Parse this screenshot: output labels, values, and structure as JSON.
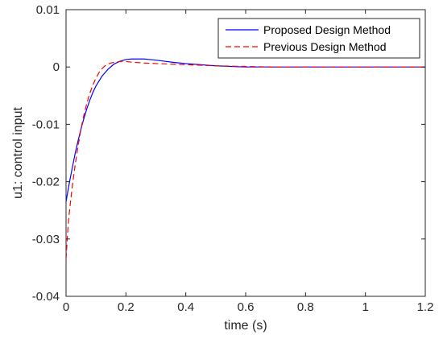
{
  "chart_data": {
    "type": "line",
    "title": "",
    "xlabel": "time (s)",
    "ylabel": "u1: control input",
    "xlim": [
      0,
      1.2
    ],
    "ylim": [
      -0.04,
      0.01
    ],
    "xticks": [
      0,
      0.2,
      0.4,
      0.6,
      0.8,
      1,
      1.2
    ],
    "xtick_labels": [
      "0",
      "0.2",
      "0.4",
      "0.6",
      "0.8",
      "1",
      "1.2"
    ],
    "yticks": [
      -0.04,
      -0.03,
      -0.02,
      -0.01,
      0,
      0.01
    ],
    "ytick_labels": [
      "-0.04",
      "-0.03",
      "-0.02",
      "-0.01",
      "0",
      "0.01"
    ],
    "grid": false,
    "legend_position": "top-right",
    "series": [
      {
        "name": "Proposed Design Method",
        "color": "#0000ff",
        "style": "solid",
        "x": [
          0,
          0.01,
          0.02,
          0.03,
          0.04,
          0.05,
          0.06,
          0.07,
          0.08,
          0.09,
          0.1,
          0.12,
          0.14,
          0.16,
          0.18,
          0.2,
          0.22,
          0.24,
          0.26,
          0.28,
          0.3,
          0.33,
          0.36,
          0.4,
          0.45,
          0.5,
          0.55,
          0.6,
          0.7,
          0.8,
          0.9,
          1.0,
          1.1,
          1.2
        ],
        "y": [
          -0.0235,
          -0.0205,
          -0.0178,
          -0.0152,
          -0.0129,
          -0.0108,
          -0.0089,
          -0.0072,
          -0.0057,
          -0.0044,
          -0.0033,
          -0.0016,
          -0.0004,
          0.0005,
          0.001,
          0.0013,
          0.0014,
          0.0014,
          0.0014,
          0.0013,
          0.0012,
          0.001,
          0.0008,
          0.0006,
          0.0004,
          0.0002,
          0.0001,
          0.0,
          0.0,
          0.0,
          0.0,
          0.0,
          0.0,
          0.0
        ]
      },
      {
        "name": "Previous Design Method",
        "color": "#ff0000",
        "style": "dashed",
        "x": [
          0,
          0.005,
          0.01,
          0.02,
          0.03,
          0.04,
          0.05,
          0.06,
          0.07,
          0.08,
          0.09,
          0.1,
          0.11,
          0.12,
          0.13,
          0.14,
          0.15,
          0.17,
          0.19,
          0.21,
          0.23,
          0.26,
          0.3,
          0.35,
          0.4,
          0.45,
          0.5,
          0.6,
          0.7,
          0.8,
          0.9,
          1.0,
          1.1,
          1.2
        ],
        "y": [
          -0.0335,
          -0.029,
          -0.0258,
          -0.0212,
          -0.0172,
          -0.0138,
          -0.0108,
          -0.0083,
          -0.0062,
          -0.0045,
          -0.0031,
          -0.0019,
          -0.001,
          -0.0003,
          0.0002,
          0.0005,
          0.0007,
          0.0009,
          0.001,
          0.0009,
          0.0008,
          0.0007,
          0.0006,
          0.0005,
          0.0004,
          0.0003,
          0.0002,
          0.0001,
          0.0,
          0.0,
          0.0,
          0.0,
          0.0,
          0.0
        ]
      }
    ]
  }
}
